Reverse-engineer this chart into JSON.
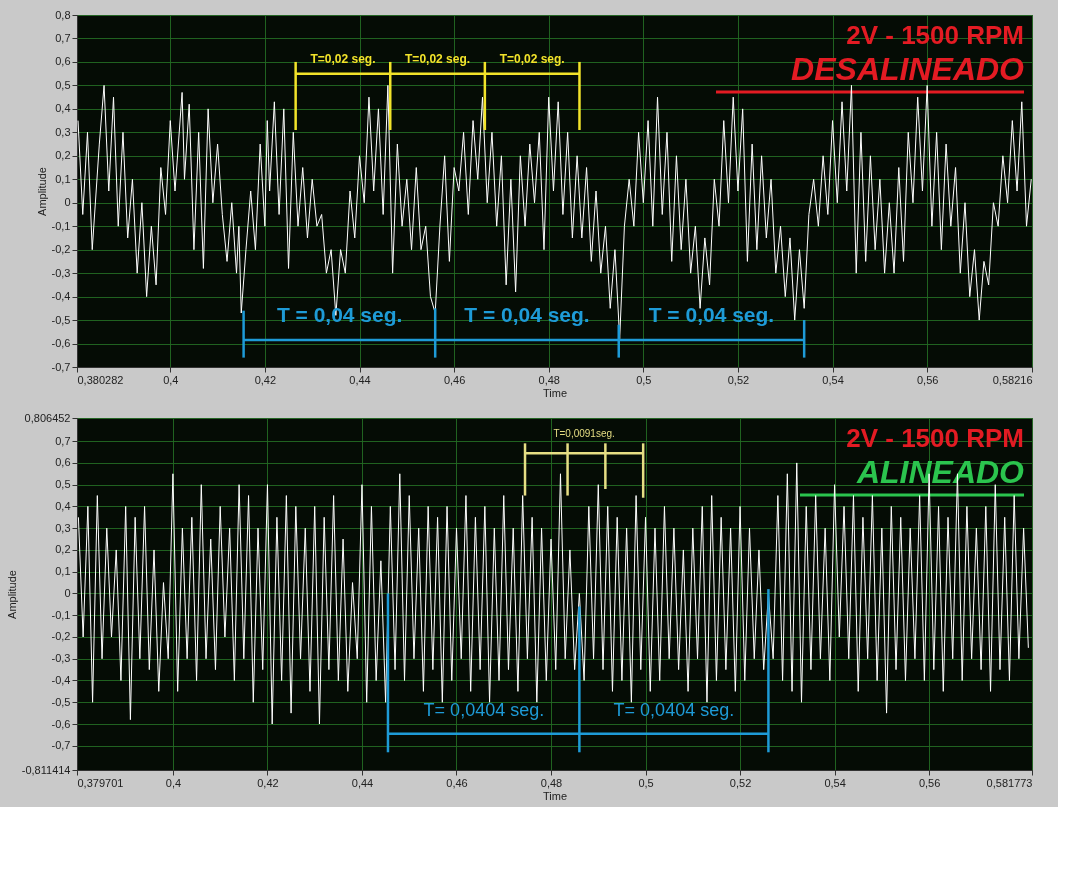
{
  "chart_data": [
    {
      "type": "line",
      "title": "2V - 1500 RPM",
      "subtitle": "DESALINEADO",
      "xlabel": "Time",
      "ylabel": "Amplitude",
      "xlim": [
        0.380282,
        0.58216
      ],
      "xticks": [
        {
          "value": 0.380282,
          "label": "0,380282"
        },
        {
          "value": 0.4,
          "label": "0,4"
        },
        {
          "value": 0.42,
          "label": "0,42"
        },
        {
          "value": 0.44,
          "label": "0,44"
        },
        {
          "value": 0.46,
          "label": "0,46"
        },
        {
          "value": 0.48,
          "label": "0,48"
        },
        {
          "value": 0.5,
          "label": "0,5"
        },
        {
          "value": 0.52,
          "label": "0,52"
        },
        {
          "value": 0.54,
          "label": "0,54"
        },
        {
          "value": 0.56,
          "label": "0,56"
        },
        {
          "value": 0.58216,
          "label": "0,58216"
        }
      ],
      "ylim": [
        -0.7,
        0.8
      ],
      "yticks": [
        {
          "value": -0.7,
          "label": "-0,7"
        },
        {
          "value": -0.6,
          "label": "-0,6"
        },
        {
          "value": -0.5,
          "label": "-0,5"
        },
        {
          "value": -0.4,
          "label": "-0,4"
        },
        {
          "value": -0.3,
          "label": "-0,3"
        },
        {
          "value": -0.2,
          "label": "-0,2"
        },
        {
          "value": -0.1,
          "label": "-0,1"
        },
        0,
        {
          "value": 0.1,
          "label": "0,1"
        },
        {
          "value": 0.2,
          "label": "0,2"
        },
        {
          "value": 0.3,
          "label": "0,3"
        },
        {
          "value": 0.4,
          "label": "0,4"
        },
        {
          "value": 0.5,
          "label": "0,5"
        },
        {
          "value": 0.6,
          "label": "0,6"
        },
        {
          "value": 0.7,
          "label": "0,7"
        },
        {
          "value": 0.8,
          "label": "0,8"
        }
      ],
      "grid": true,
      "marker": "none",
      "series": [
        {
          "color": "#ffffff",
          "x": [
            0.3805,
            0.3815,
            0.3825,
            0.3835,
            0.385,
            0.386,
            0.387,
            0.388,
            0.389,
            0.39,
            0.391,
            0.392,
            0.393,
            0.394,
            0.395,
            0.396,
            0.397,
            0.398,
            0.399,
            0.4,
            0.401,
            0.4025,
            0.403,
            0.404,
            0.405,
            0.406,
            0.407,
            0.408,
            0.409,
            0.41,
            0.411,
            0.412,
            0.413,
            0.414,
            0.4145,
            0.415,
            0.416,
            0.417,
            0.418,
            0.419,
            0.42,
            0.4205,
            0.421,
            0.422,
            0.423,
            0.424,
            0.425,
            0.426,
            0.427,
            0.428,
            0.429,
            0.43,
            0.431,
            0.432,
            0.433,
            0.434,
            0.435,
            0.436,
            0.437,
            0.438,
            0.439,
            0.44,
            0.441,
            0.442,
            0.443,
            0.444,
            0.445,
            0.446,
            0.447,
            0.448,
            0.449,
            0.45,
            0.451,
            0.452,
            0.453,
            0.454,
            0.455,
            0.456,
            0.457,
            0.458,
            0.459,
            0.46,
            0.461,
            0.462,
            0.463,
            0.464,
            0.465,
            0.466,
            0.467,
            0.468,
            0.469,
            0.47,
            0.471,
            0.472,
            0.473,
            0.474,
            0.475,
            0.476,
            0.477,
            0.478,
            0.479,
            0.48,
            0.481,
            0.482,
            0.483,
            0.484,
            0.485,
            0.486,
            0.487,
            0.488,
            0.489,
            0.49,
            0.491,
            0.492,
            0.493,
            0.494,
            0.495,
            0.496,
            0.497,
            0.498,
            0.499,
            0.5,
            0.501,
            0.502,
            0.503,
            0.504,
            0.505,
            0.506,
            0.507,
            0.508,
            0.509,
            0.51,
            0.511,
            0.512,
            0.513,
            0.514,
            0.515,
            0.516,
            0.517,
            0.518,
            0.519,
            0.52,
            0.521,
            0.522,
            0.523,
            0.524,
            0.525,
            0.526,
            0.527,
            0.528,
            0.529,
            0.53,
            0.531,
            0.532,
            0.533,
            0.534,
            0.535,
            0.536,
            0.537,
            0.538,
            0.539,
            0.54,
            0.541,
            0.542,
            0.543,
            0.544,
            0.545,
            0.546,
            0.547,
            0.548,
            0.549,
            0.55,
            0.551,
            0.552,
            0.553,
            0.554,
            0.555,
            0.556,
            0.557,
            0.558,
            0.559,
            0.56,
            0.561,
            0.562,
            0.563,
            0.564,
            0.565,
            0.566,
            0.567,
            0.568,
            0.569,
            0.57,
            0.571,
            0.572,
            0.573,
            0.574,
            0.575,
            0.576,
            0.577,
            0.578,
            0.579,
            0.58,
            0.581,
            0.582
          ],
          "values": [
            0.35,
            -0.05,
            0.3,
            -0.2,
            0.25,
            0.5,
            0.05,
            0.45,
            -0.1,
            0.3,
            -0.15,
            0.1,
            -0.3,
            0.0,
            -0.4,
            -0.1,
            -0.35,
            0.15,
            -0.05,
            0.35,
            0.05,
            0.47,
            0.1,
            0.42,
            -0.2,
            0.3,
            -0.28,
            0.4,
            0.0,
            0.25,
            -0.05,
            -0.25,
            0.0,
            -0.3,
            -0.1,
            -0.47,
            -0.2,
            0.05,
            -0.2,
            0.25,
            -0.1,
            0.35,
            0.05,
            0.43,
            -0.05,
            0.4,
            -0.28,
            0.3,
            -0.1,
            0.15,
            -0.15,
            0.1,
            -0.1,
            -0.05,
            -0.3,
            -0.2,
            -0.48,
            -0.2,
            -0.3,
            0.05,
            -0.15,
            0.2,
            0.0,
            0.45,
            0.05,
            0.4,
            -0.05,
            0.5,
            -0.3,
            0.25,
            -0.1,
            0.1,
            -0.2,
            0.15,
            -0.2,
            -0.1,
            -0.4,
            -0.47,
            -0.1,
            0.2,
            -0.25,
            0.15,
            0.05,
            0.3,
            -0.05,
            0.35,
            0.1,
            0.45,
            0.0,
            0.3,
            -0.1,
            0.2,
            -0.35,
            0.1,
            -0.38,
            0.2,
            -0.1,
            0.25,
            0.0,
            0.3,
            -0.2,
            0.45,
            0.05,
            0.43,
            -0.05,
            0.3,
            -0.15,
            0.2,
            -0.15,
            0.15,
            -0.25,
            0.05,
            -0.3,
            -0.1,
            -0.45,
            -0.2,
            -0.58,
            -0.1,
            0.1,
            -0.1,
            0.3,
            0.0,
            0.35,
            -0.1,
            0.45,
            -0.05,
            0.3,
            -0.25,
            0.2,
            -0.2,
            0.1,
            -0.3,
            -0.1,
            -0.45,
            -0.15,
            -0.35,
            0.1,
            -0.1,
            0.35,
            0.0,
            0.45,
            0.05,
            0.4,
            -0.25,
            0.25,
            -0.2,
            0.2,
            -0.15,
            0.1,
            -0.3,
            -0.1,
            -0.4,
            -0.15,
            -0.5,
            -0.2,
            -0.45,
            -0.05,
            0.1,
            -0.1,
            0.2,
            -0.05,
            0.35,
            0.0,
            0.43,
            0.05,
            0.5,
            -0.3,
            0.3,
            -0.25,
            0.2,
            -0.2,
            0.1,
            -0.3,
            0.0,
            -0.3,
            0.15,
            -0.25,
            0.3,
            0.0,
            0.45,
            0.05,
            0.5,
            -0.1,
            0.3,
            -0.2,
            0.25,
            -0.1,
            0.15,
            -0.3,
            0.0,
            -0.4,
            -0.2,
            -0.5,
            -0.25,
            -0.35,
            0.0,
            -0.1,
            0.2,
            0.0,
            0.35,
            0.05,
            0.43,
            -0.1,
            0.1
          ]
        },
        {
          "color": "#f2e32a",
          "x": [
            0.4265,
            0.4865
          ],
          "values": [
            0.55,
            0.55
          ]
        },
        {
          "color": "#f2e32a",
          "x": [
            0.4265,
            0.4265
          ],
          "values": [
            0.6,
            0.31
          ]
        },
        {
          "color": "#f2e32a",
          "x": [
            0.4465,
            0.4465
          ],
          "values": [
            0.6,
            0.31
          ]
        },
        {
          "color": "#f2e32a",
          "x": [
            0.4665,
            0.4665
          ],
          "values": [
            0.6,
            0.31
          ]
        },
        {
          "color": "#f2e32a",
          "x": [
            0.4865,
            0.4865
          ],
          "values": [
            0.6,
            0.31
          ]
        },
        {
          "color": "#1e9bd7",
          "x": [
            0.4155,
            0.534
          ],
          "values": [
            -0.585,
            -0.585
          ]
        },
        {
          "color": "#1e9bd7",
          "x": [
            0.4155,
            0.4155
          ],
          "values": [
            -0.46,
            -0.66
          ]
        },
        {
          "color": "#1e9bd7",
          "x": [
            0.456,
            0.456
          ],
          "values": [
            -0.45,
            -0.66
          ]
        },
        {
          "color": "#1e9bd7",
          "x": [
            0.4948,
            0.4948
          ],
          "values": [
            -0.52,
            -0.66
          ]
        },
        {
          "color": "#1e9bd7",
          "x": [
            0.534,
            0.534
          ],
          "values": [
            -0.5,
            -0.66
          ]
        }
      ],
      "annotations": [
        {
          "text": "T=0,02 seg.",
          "x": 0.4365,
          "y": 0.55
        },
        {
          "text": "T=0,02 seg.",
          "x": 0.4565,
          "y": 0.55
        },
        {
          "text": "T=0,02 seg.",
          "x": 0.4765,
          "y": 0.55
        },
        {
          "text": "T = 0,04 seg.",
          "x": 0.4358,
          "y": -0.585
        },
        {
          "text": "T = 0,04 seg.",
          "x": 0.4754,
          "y": -0.585
        },
        {
          "text": "T = 0,04 seg.",
          "x": 0.5144,
          "y": -0.585
        }
      ]
    },
    {
      "type": "line",
      "title": "2V - 1500 RPM",
      "subtitle": "ALINEADO",
      "xlabel": "Time",
      "ylabel": "Amplitude",
      "xlim": [
        0.379701,
        0.581773
      ],
      "xticks": [
        {
          "value": 0.379701,
          "label": "0,379701"
        },
        {
          "value": 0.4,
          "label": "0,4"
        },
        {
          "value": 0.42,
          "label": "0,42"
        },
        {
          "value": 0.44,
          "label": "0,44"
        },
        {
          "value": 0.46,
          "label": "0,46"
        },
        {
          "value": 0.48,
          "label": "0,48"
        },
        {
          "value": 0.5,
          "label": "0,5"
        },
        {
          "value": 0.52,
          "label": "0,52"
        },
        {
          "value": 0.54,
          "label": "0,54"
        },
        {
          "value": 0.56,
          "label": "0,56"
        },
        {
          "value": 0.581773,
          "label": "0,581773"
        }
      ],
      "ylim": [
        -0.811414,
        0.806452
      ],
      "yticks": [
        {
          "value": -0.811414,
          "label": "-0,811414"
        },
        {
          "value": -0.7,
          "label": "-0,7"
        },
        {
          "value": -0.6,
          "label": "-0,6"
        },
        {
          "value": -0.5,
          "label": "-0,5"
        },
        {
          "value": -0.4,
          "label": "-0,4"
        },
        {
          "value": -0.3,
          "label": "-0,3"
        },
        {
          "value": -0.2,
          "label": "-0,2"
        },
        {
          "value": -0.1,
          "label": "-0,1"
        },
        0,
        {
          "value": 0.1,
          "label": "0,1"
        },
        {
          "value": 0.2,
          "label": "0,2"
        },
        {
          "value": 0.3,
          "label": "0,3"
        },
        {
          "value": 0.4,
          "label": "0,4"
        },
        {
          "value": 0.5,
          "label": "0,5"
        },
        {
          "value": 0.6,
          "label": "0,6"
        },
        {
          "value": 0.7,
          "label": "0,7"
        },
        {
          "value": 0.806452,
          "label": "0,806452"
        }
      ],
      "grid": true,
      "marker": "none",
      "series": [
        {
          "color": "#ffffff",
          "x": [
            0.38,
            0.381,
            0.382,
            0.383,
            0.384,
            0.385,
            0.386,
            0.387,
            0.388,
            0.389,
            0.39,
            0.391,
            0.392,
            0.393,
            0.394,
            0.395,
            0.396,
            0.397,
            0.398,
            0.399,
            0.4,
            0.401,
            0.402,
            0.403,
            0.404,
            0.405,
            0.406,
            0.407,
            0.408,
            0.409,
            0.41,
            0.411,
            0.412,
            0.413,
            0.414,
            0.415,
            0.416,
            0.417,
            0.418,
            0.419,
            0.42,
            0.421,
            0.422,
            0.423,
            0.424,
            0.425,
            0.426,
            0.427,
            0.428,
            0.429,
            0.43,
            0.431,
            0.432,
            0.433,
            0.434,
            0.435,
            0.436,
            0.437,
            0.438,
            0.439,
            0.44,
            0.441,
            0.442,
            0.443,
            0.444,
            0.445,
            0.446,
            0.447,
            0.448,
            0.449,
            0.45,
            0.451,
            0.452,
            0.453,
            0.454,
            0.455,
            0.456,
            0.457,
            0.458,
            0.459,
            0.46,
            0.461,
            0.462,
            0.463,
            0.464,
            0.465,
            0.466,
            0.467,
            0.468,
            0.469,
            0.47,
            0.471,
            0.472,
            0.473,
            0.474,
            0.475,
            0.476,
            0.477,
            0.478,
            0.479,
            0.48,
            0.481,
            0.482,
            0.483,
            0.484,
            0.485,
            0.486,
            0.487,
            0.488,
            0.489,
            0.49,
            0.491,
            0.492,
            0.493,
            0.494,
            0.495,
            0.496,
            0.497,
            0.498,
            0.499,
            0.5,
            0.501,
            0.502,
            0.503,
            0.504,
            0.505,
            0.506,
            0.507,
            0.508,
            0.509,
            0.51,
            0.511,
            0.512,
            0.513,
            0.514,
            0.515,
            0.516,
            0.517,
            0.518,
            0.519,
            0.52,
            0.521,
            0.522,
            0.523,
            0.524,
            0.525,
            0.526,
            0.527,
            0.528,
            0.529,
            0.53,
            0.531,
            0.532,
            0.533,
            0.534,
            0.535,
            0.536,
            0.537,
            0.538,
            0.539,
            0.54,
            0.541,
            0.542,
            0.543,
            0.544,
            0.545,
            0.546,
            0.547,
            0.548,
            0.549,
            0.55,
            0.551,
            0.552,
            0.553,
            0.554,
            0.555,
            0.556,
            0.557,
            0.558,
            0.559,
            0.56,
            0.561,
            0.562,
            0.563,
            0.564,
            0.565,
            0.566,
            0.567,
            0.568,
            0.569,
            0.57,
            0.571,
            0.572,
            0.573,
            0.574,
            0.575,
            0.576,
            0.577,
            0.578,
            0.579,
            0.58,
            0.581
          ],
          "values": [
            0.35,
            -0.2,
            0.4,
            -0.5,
            0.45,
            -0.3,
            0.3,
            -0.2,
            0.2,
            -0.4,
            0.4,
            -0.58,
            0.35,
            -0.3,
            0.4,
            -0.35,
            0.2,
            -0.45,
            0.05,
            -0.3,
            0.55,
            -0.45,
            0.3,
            -0.3,
            0.35,
            -0.4,
            0.5,
            -0.3,
            0.25,
            -0.35,
            0.4,
            -0.2,
            0.3,
            -0.4,
            0.5,
            -0.3,
            0.45,
            -0.5,
            0.3,
            -0.35,
            0.5,
            -0.6,
            0.35,
            -0.4,
            0.45,
            -0.55,
            0.4,
            -0.3,
            0.3,
            -0.45,
            0.4,
            -0.6,
            0.35,
            -0.35,
            0.45,
            -0.4,
            0.25,
            -0.45,
            0.05,
            -0.3,
            0.5,
            -0.5,
            0.4,
            -0.4,
            0.15,
            -0.5,
            0.4,
            -0.35,
            0.55,
            -0.4,
            0.45,
            -0.3,
            0.3,
            -0.45,
            0.4,
            -0.35,
            0.35,
            -0.5,
            0.4,
            -0.4,
            0.3,
            -0.3,
            0.45,
            -0.45,
            0.35,
            -0.35,
            0.4,
            -0.5,
            0.3,
            -0.4,
            0.45,
            -0.35,
            0.3,
            -0.45,
            0.45,
            -0.3,
            0.35,
            -0.5,
            0.3,
            -0.4,
            0.25,
            -0.35,
            0.55,
            -0.3,
            0.2,
            -0.35,
            0.0,
            -0.4,
            0.4,
            -0.3,
            0.5,
            -0.35,
            0.4,
            -0.45,
            0.35,
            -0.4,
            0.3,
            -0.5,
            0.45,
            -0.35,
            0.35,
            -0.45,
            0.3,
            -0.4,
            0.4,
            -0.3,
            0.3,
            -0.35,
            0.2,
            -0.45,
            0.3,
            -0.3,
            0.4,
            -0.5,
            0.45,
            -0.4,
            0.35,
            -0.35,
            0.3,
            -0.45,
            0.4,
            -0.4,
            0.3,
            -0.3,
            0.2,
            -0.35,
            0.0,
            -0.3,
            0.45,
            -0.4,
            0.55,
            -0.45,
            0.6,
            -0.5,
            0.4,
            -0.35,
            0.45,
            -0.3,
            0.3,
            -0.4,
            0.5,
            -0.2,
            0.4,
            -0.3,
            0.45,
            -0.45,
            0.35,
            -0.3,
            0.45,
            -0.4,
            0.3,
            -0.55,
            0.4,
            -0.35,
            0.35,
            -0.4,
            0.3,
            -0.3,
            0.45,
            -0.4,
            0.55,
            -0.35,
            0.4,
            -0.45,
            0.35,
            -0.3,
            0.55,
            -0.4,
            0.4,
            -0.3,
            0.3,
            -0.35,
            0.4,
            -0.45,
            0.5,
            -0.35,
            0.35,
            -0.4,
            0.45,
            -0.3,
            0.3,
            -0.25
          ]
        },
        {
          "color": "#e6de84",
          "x": [
            0.4745,
            0.4995
          ],
          "values": [
            0.645,
            0.645
          ]
        },
        {
          "color": "#e6de84",
          "x": [
            0.4745,
            0.4745
          ],
          "values": [
            0.69,
            0.45
          ]
        },
        {
          "color": "#e6de84",
          "x": [
            0.4835,
            0.4835
          ],
          "values": [
            0.69,
            0.45
          ]
        },
        {
          "color": "#e6de84",
          "x": [
            0.4915,
            0.4915
          ],
          "values": [
            0.69,
            0.48
          ]
        },
        {
          "color": "#e6de84",
          "x": [
            0.4995,
            0.4995
          ],
          "values": [
            0.69,
            0.44
          ]
        },
        {
          "color": "#1e9bd7",
          "x": [
            0.4455,
            0.526
          ],
          "values": [
            -0.645,
            -0.645
          ]
        },
        {
          "color": "#1e9bd7",
          "x": [
            0.4455,
            0.4455
          ],
          "values": [
            0.0,
            -0.73
          ]
        },
        {
          "color": "#1e9bd7",
          "x": [
            0.486,
            0.486
          ],
          "values": [
            -0.06,
            -0.73
          ]
        },
        {
          "color": "#1e9bd7",
          "x": [
            0.526,
            0.526
          ],
          "values": [
            0.02,
            -0.73
          ]
        }
      ],
      "annotations": [
        {
          "text": "T=0,0091seg.",
          "x": 0.487,
          "y": 0.645
        },
        {
          "text": "T= 0,0404 seg.",
          "x": 0.4658,
          "y": -0.645
        },
        {
          "text": "T= 0,0404 seg.",
          "x": 0.506,
          "y": -0.645
        }
      ]
    }
  ]
}
